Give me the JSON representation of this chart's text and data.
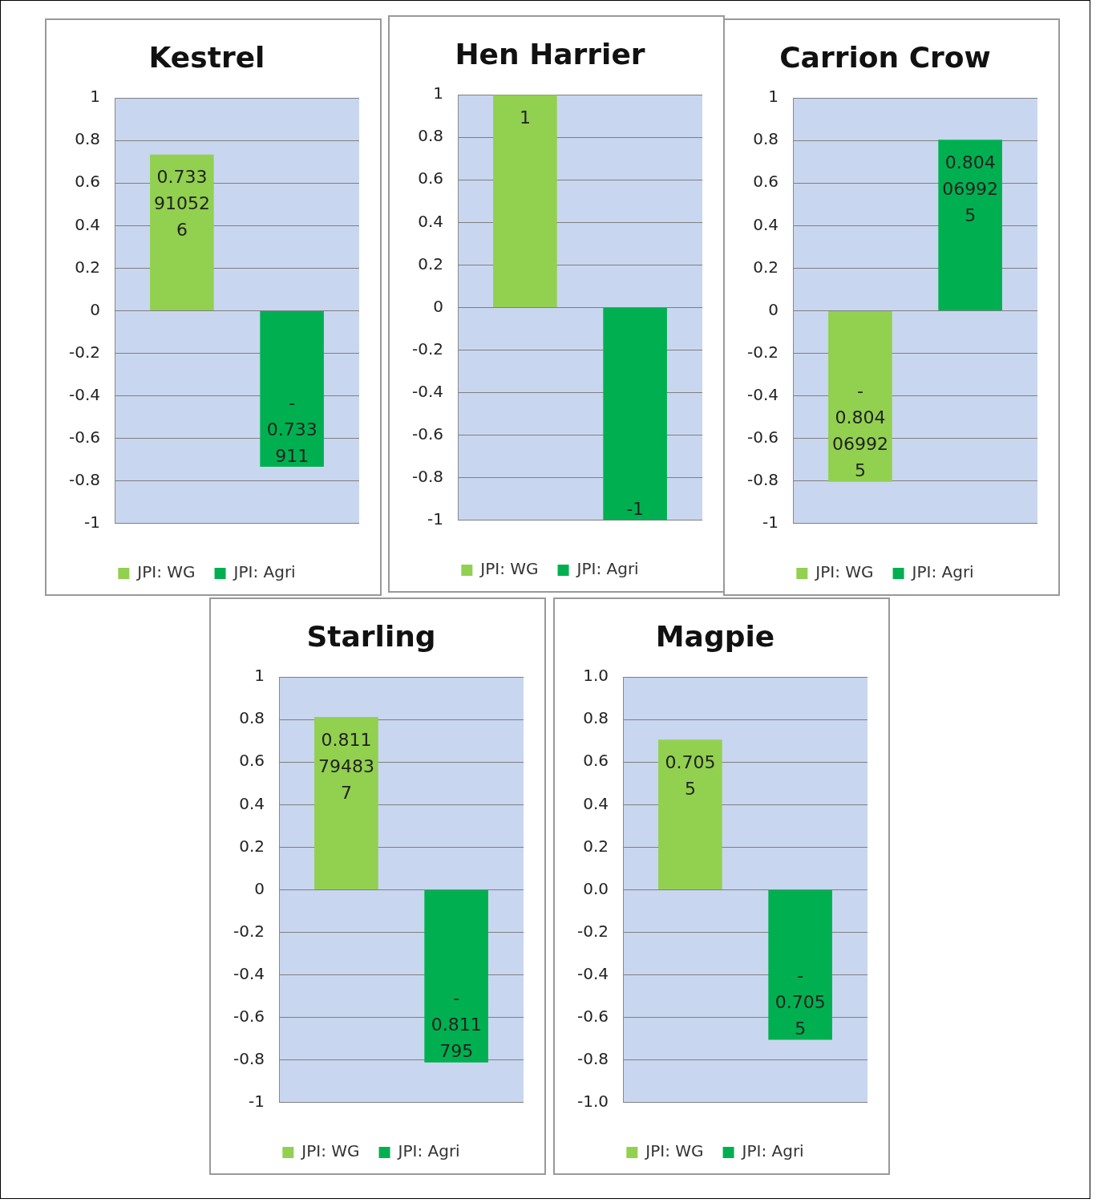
{
  "chart_data": [
    {
      "type": "bar",
      "title": "Kestrel",
      "categories": [
        null
      ],
      "series": [
        {
          "name": "JPI: WG",
          "color": "#92d050",
          "values": [
            0.733910526
          ],
          "value_labels": [
            "0.733910526"
          ]
        },
        {
          "name": "JPI: Agri",
          "color": "#00b050",
          "values": [
            -0.733911
          ],
          "value_labels": [
            "-0.733911"
          ]
        }
      ],
      "ylim": [
        -1,
        1
      ],
      "yticks": [
        -1,
        -0.8,
        -0.6,
        -0.4,
        -0.2,
        0,
        0.2,
        0.4,
        0.6,
        0.8,
        1
      ],
      "grid": "y",
      "legend": "bottom"
    },
    {
      "type": "bar",
      "title": "Hen Harrier",
      "categories": [
        null
      ],
      "series": [
        {
          "name": "JPI: WG",
          "color": "#92d050",
          "values": [
            1
          ],
          "value_labels": [
            "1"
          ]
        },
        {
          "name": "JPI: Agri",
          "color": "#00b050",
          "values": [
            -1
          ],
          "value_labels": [
            "-1"
          ]
        }
      ],
      "ylim": [
        -1,
        1
      ],
      "yticks": [
        -1,
        -0.8,
        -0.6,
        -0.4,
        -0.2,
        0,
        0.2,
        0.4,
        0.6,
        0.8,
        1
      ],
      "grid": "y",
      "legend": "bottom"
    },
    {
      "type": "bar",
      "title": "Carrion Crow",
      "categories": [
        null
      ],
      "series": [
        {
          "name": "JPI: WG",
          "color": "#92d050",
          "values": [
            -0.804069925
          ],
          "value_labels": [
            "-0.804069925"
          ]
        },
        {
          "name": "JPI: Agri",
          "color": "#00b050",
          "values": [
            0.804069925
          ],
          "value_labels": [
            "0.804069925"
          ]
        }
      ],
      "ylim": [
        -1,
        1
      ],
      "yticks": [
        -1,
        -0.8,
        -0.6,
        -0.4,
        -0.2,
        0,
        0.2,
        0.4,
        0.6,
        0.8,
        1
      ],
      "grid": "y",
      "legend": "bottom"
    },
    {
      "type": "bar",
      "title": "Starling",
      "categories": [
        null
      ],
      "series": [
        {
          "name": "JPI: WG",
          "color": "#92d050",
          "values": [
            0.811794837
          ],
          "value_labels": [
            "0.811794837"
          ]
        },
        {
          "name": "JPI: Agri",
          "color": "#00b050",
          "values": [
            -0.811795
          ],
          "value_labels": [
            "-0.811795"
          ]
        }
      ],
      "ylim": [
        -1,
        1
      ],
      "yticks": [
        -1,
        -0.8,
        -0.6,
        -0.4,
        -0.2,
        0,
        0.2,
        0.4,
        0.6,
        0.8,
        1
      ],
      "grid": "y",
      "legend": "bottom"
    },
    {
      "type": "bar",
      "title": "Magpie",
      "categories": [
        null
      ],
      "series": [
        {
          "name": "JPI: WG",
          "color": "#92d050",
          "values": [
            0.7055
          ],
          "value_labels": [
            "0.7055"
          ]
        },
        {
          "name": "JPI: Agri",
          "color": "#00b050",
          "values": [
            -0.7055
          ],
          "value_labels": [
            "-0.7055"
          ]
        }
      ],
      "ylim": [
        -1,
        1
      ],
      "yticks": [
        {
          "value": -1,
          "label": "-1.0"
        },
        -0.8,
        -0.6,
        -0.4,
        -0.2,
        {
          "value": 0,
          "label": "0.0"
        },
        0.2,
        0.4,
        0.6,
        0.8,
        {
          "value": 1,
          "label": "1.0"
        }
      ],
      "grid": "y",
      "legend": "bottom"
    }
  ]
}
